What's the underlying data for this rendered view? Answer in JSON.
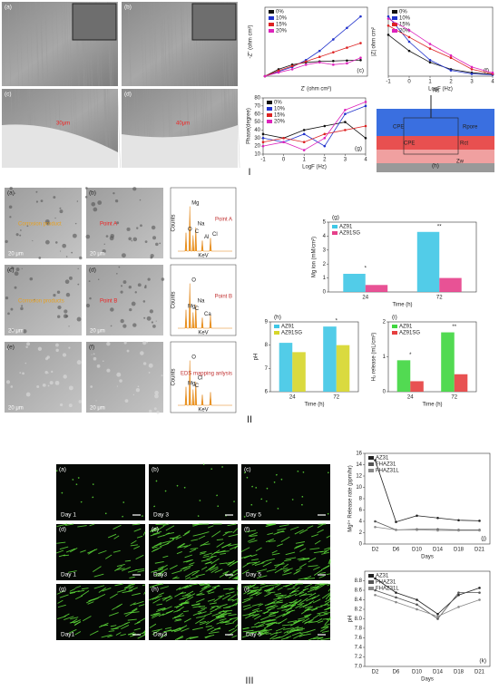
{
  "section_labels": [
    "I",
    "II",
    "III"
  ],
  "sem_images": [
    {
      "label": "(a)"
    },
    {
      "label": "(b)"
    },
    {
      "label": "(c)",
      "note": "30μm"
    },
    {
      "label": "(d)",
      "note": "40μm"
    }
  ],
  "circuit": {
    "label": "(h)",
    "elements": [
      "Rs",
      "CPE",
      "Rpore",
      "CPE",
      "Rct",
      "Zw"
    ]
  },
  "eds_images": [
    {
      "label": "(a)",
      "note": "Corrosion product",
      "scale": "20 μm"
    },
    {
      "label": "(b)",
      "note": "Point A",
      "scale": "20 μm"
    },
    {
      "label": "(c)",
      "note": "Corrosion products",
      "scale": "20 μm"
    },
    {
      "label": "(d)",
      "note": "Point B",
      "scale": "20 μm"
    },
    {
      "label": "(e)",
      "scale": "20 μm"
    },
    {
      "label": "(f)",
      "scale": "20 μm"
    }
  ],
  "spectra_axes": {
    "y": "Counts",
    "x": "KeV"
  },
  "spectra": [
    {
      "title": "Point A",
      "peaks": [
        "O",
        "Mg",
        "C",
        "Na",
        "Al",
        "Cl"
      ]
    },
    {
      "title": "Point B",
      "peaks": [
        "Mg",
        "O",
        "C",
        "Na",
        "Ca"
      ]
    },
    {
      "title": "EDS mapping anlysis",
      "peaks": [
        "Mg",
        "O",
        "C",
        "Cl"
      ]
    }
  ],
  "fluorescence": [
    {
      "label": "(a)",
      "day": "Day 1"
    },
    {
      "label": "(b)",
      "day": "Day 3"
    },
    {
      "label": "(c)",
      "day": "Day 5"
    },
    {
      "label": "(d)",
      "day": "Day 1"
    },
    {
      "label": "(e)",
      "day": "Day3"
    },
    {
      "label": "(f)",
      "day": "Day 5"
    },
    {
      "label": "(g)",
      "day": "Day1"
    },
    {
      "label": "(h)",
      "day": "Day3"
    },
    {
      "label": "(i)",
      "day": "Day 5"
    }
  ],
  "chart_data": [
    {
      "type": "line",
      "panel": "(c)",
      "xlabel": "Z' (ohm cm²)",
      "ylabel": "-Z'' (ohm cm²)",
      "x": [
        0,
        200,
        400,
        600,
        800,
        1000,
        1200,
        1400
      ],
      "xlim": [
        0,
        1500
      ],
      "ylim": [
        0,
        1500
      ],
      "series": [
        {
          "name": "0%",
          "color": "#111111",
          "values": [
            0,
            150,
            250,
            300,
            320,
            330,
            340,
            350
          ]
        },
        {
          "name": "10%",
          "color": "#2233cc",
          "values": [
            0,
            100,
            200,
            350,
            550,
            800,
            1050,
            1300
          ]
        },
        {
          "name": "15%",
          "color": "#dd2222",
          "values": [
            0,
            120,
            220,
            320,
            420,
            520,
            620,
            720
          ]
        },
        {
          "name": "20%",
          "color": "#dd22bb",
          "values": [
            0,
            80,
            150,
            250,
            300,
            250,
            280,
            400
          ]
        }
      ]
    },
    {
      "type": "line",
      "panel": "(f)",
      "xlabel": "LogF (Hz)",
      "ylabel": "|Z| ohm cm²",
      "x": [
        -1,
        0,
        1,
        2,
        3,
        4
      ],
      "xlim": [
        -1,
        4
      ],
      "ylim": [
        0,
        3000
      ],
      "xticks": [
        -1,
        0,
        1,
        2,
        3,
        4
      ],
      "series": [
        {
          "name": "0%",
          "color": "#111111",
          "values": [
            1800,
            1100,
            600,
            300,
            150,
            80
          ]
        },
        {
          "name": "10%",
          "color": "#2233cc",
          "values": [
            2600,
            1500,
            700,
            250,
            100,
            60
          ]
        },
        {
          "name": "15%",
          "color": "#dd2222",
          "values": [
            2200,
            1700,
            1200,
            800,
            300,
            100
          ]
        },
        {
          "name": "20%",
          "color": "#dd22bb",
          "values": [
            2500,
            2000,
            1400,
            900,
            400,
            150
          ]
        }
      ]
    },
    {
      "type": "line",
      "panel": "(g)",
      "xlabel": "LogF (Hz)",
      "ylabel": "Phase(degree)",
      "x": [
        -1,
        0,
        1,
        2,
        3,
        4
      ],
      "xlim": [
        -1,
        4
      ],
      "ylim": [
        10,
        80
      ],
      "xticks": [
        -1,
        0,
        1,
        2,
        3,
        4
      ],
      "yticks": [
        10,
        20,
        30,
        40,
        50,
        60,
        70,
        80
      ],
      "series": [
        {
          "name": "0%",
          "color": "#111111",
          "values": [
            35,
            30,
            40,
            45,
            50,
            30
          ]
        },
        {
          "name": "10%",
          "color": "#2233cc",
          "values": [
            30,
            25,
            35,
            20,
            60,
            70
          ]
        },
        {
          "name": "15%",
          "color": "#dd2222",
          "values": [
            25,
            30,
            25,
            35,
            40,
            45
          ]
        },
        {
          "name": "20%",
          "color": "#dd22bb",
          "values": [
            20,
            25,
            15,
            30,
            65,
            75
          ]
        }
      ]
    },
    {
      "type": "bar",
      "panel": "(g)",
      "xlabel": "Time (h)",
      "ylabel": "Mg ion (mM/cm²)",
      "categories": [
        "24",
        "72"
      ],
      "ylim": [
        0,
        5
      ],
      "yticks": [
        0,
        1,
        2,
        3,
        4,
        5
      ],
      "annotations": [
        "*",
        "**"
      ],
      "series": [
        {
          "name": "AZ91",
          "color": "#3fc7e6",
          "values": [
            1.3,
            4.3
          ]
        },
        {
          "name": "AZ91SG",
          "color": "#e63f8a",
          "values": [
            0.5,
            1.0
          ]
        }
      ]
    },
    {
      "type": "bar",
      "panel": "(h)",
      "xlabel": "Time (h)",
      "ylabel": "pH",
      "categories": [
        "24",
        "72"
      ],
      "ylim": [
        6,
        9
      ],
      "yticks": [
        6,
        7,
        8,
        9
      ],
      "annotations": [
        null,
        "*"
      ],
      "series": [
        {
          "name": "AZ91",
          "color": "#3fc7e6",
          "values": [
            8.1,
            8.8
          ]
        },
        {
          "name": "AZ91SG",
          "color": "#d6d62a",
          "values": [
            7.7,
            8.0
          ]
        }
      ]
    },
    {
      "type": "bar",
      "panel": "(i)",
      "xlabel": "Time (h)",
      "ylabel": "H₂ release (mL/cm²)",
      "categories": [
        "24",
        "72"
      ],
      "ylim": [
        0,
        2
      ],
      "yticks": [
        0,
        1,
        2
      ],
      "annotations": [
        "*",
        "**"
      ],
      "series": [
        {
          "name": "AZ91",
          "color": "#3fd63f",
          "values": [
            0.9,
            1.7
          ]
        },
        {
          "name": "AZ91SG",
          "color": "#e63f3f",
          "values": [
            0.3,
            0.5
          ]
        }
      ]
    },
    {
      "type": "line",
      "panel": "(j)",
      "xlabel": "Days",
      "ylabel": "Mg²⁺ Release rate (ppm/hr)",
      "categories": [
        "D2",
        "D6",
        "D10",
        "D14",
        "D18",
        "D21"
      ],
      "ylim": [
        0,
        16
      ],
      "yticks": [
        0,
        2,
        4,
        6,
        8,
        10,
        12,
        14,
        16
      ],
      "series": [
        {
          "name": "AZ31",
          "color": "#222222",
          "values": [
            14.8,
            3.9,
            5.0,
            4.6,
            4.2,
            4.1
          ]
        },
        {
          "name": "FHAZ31",
          "color": "#555555",
          "values": [
            4.0,
            2.5,
            2.6,
            2.6,
            2.5,
            2.5
          ]
        },
        {
          "name": "FHAZ31L",
          "color": "#888888",
          "values": [
            3.0,
            2.5,
            2.5,
            2.4,
            2.4,
            2.4
          ]
        }
      ]
    },
    {
      "type": "line",
      "panel": "(k)",
      "xlabel": "Days",
      "ylabel": "pH",
      "categories": [
        "D2",
        "D6",
        "D10",
        "D14",
        "D18",
        "D21"
      ],
      "ylim": [
        7,
        9
      ],
      "yticks": [
        {
          "value": 7,
          "label": "7.0"
        },
        7.2,
        7.4,
        7.6,
        7.8,
        {
          "value": 8,
          "label": "8.0"
        },
        8.2,
        8.4,
        8.6,
        8.8
      ],
      "series": [
        {
          "name": "AZ31",
          "color": "#222222",
          "values": [
            8.85,
            8.55,
            8.4,
            8.1,
            8.5,
            8.65
          ]
        },
        {
          "name": "FHAZ31",
          "color": "#555555",
          "values": [
            8.6,
            8.45,
            8.3,
            8.0,
            8.55,
            8.55
          ]
        },
        {
          "name": "FHAZ31L",
          "color": "#888888",
          "values": [
            8.5,
            8.35,
            8.2,
            8.05,
            8.25,
            8.4
          ]
        }
      ]
    }
  ]
}
